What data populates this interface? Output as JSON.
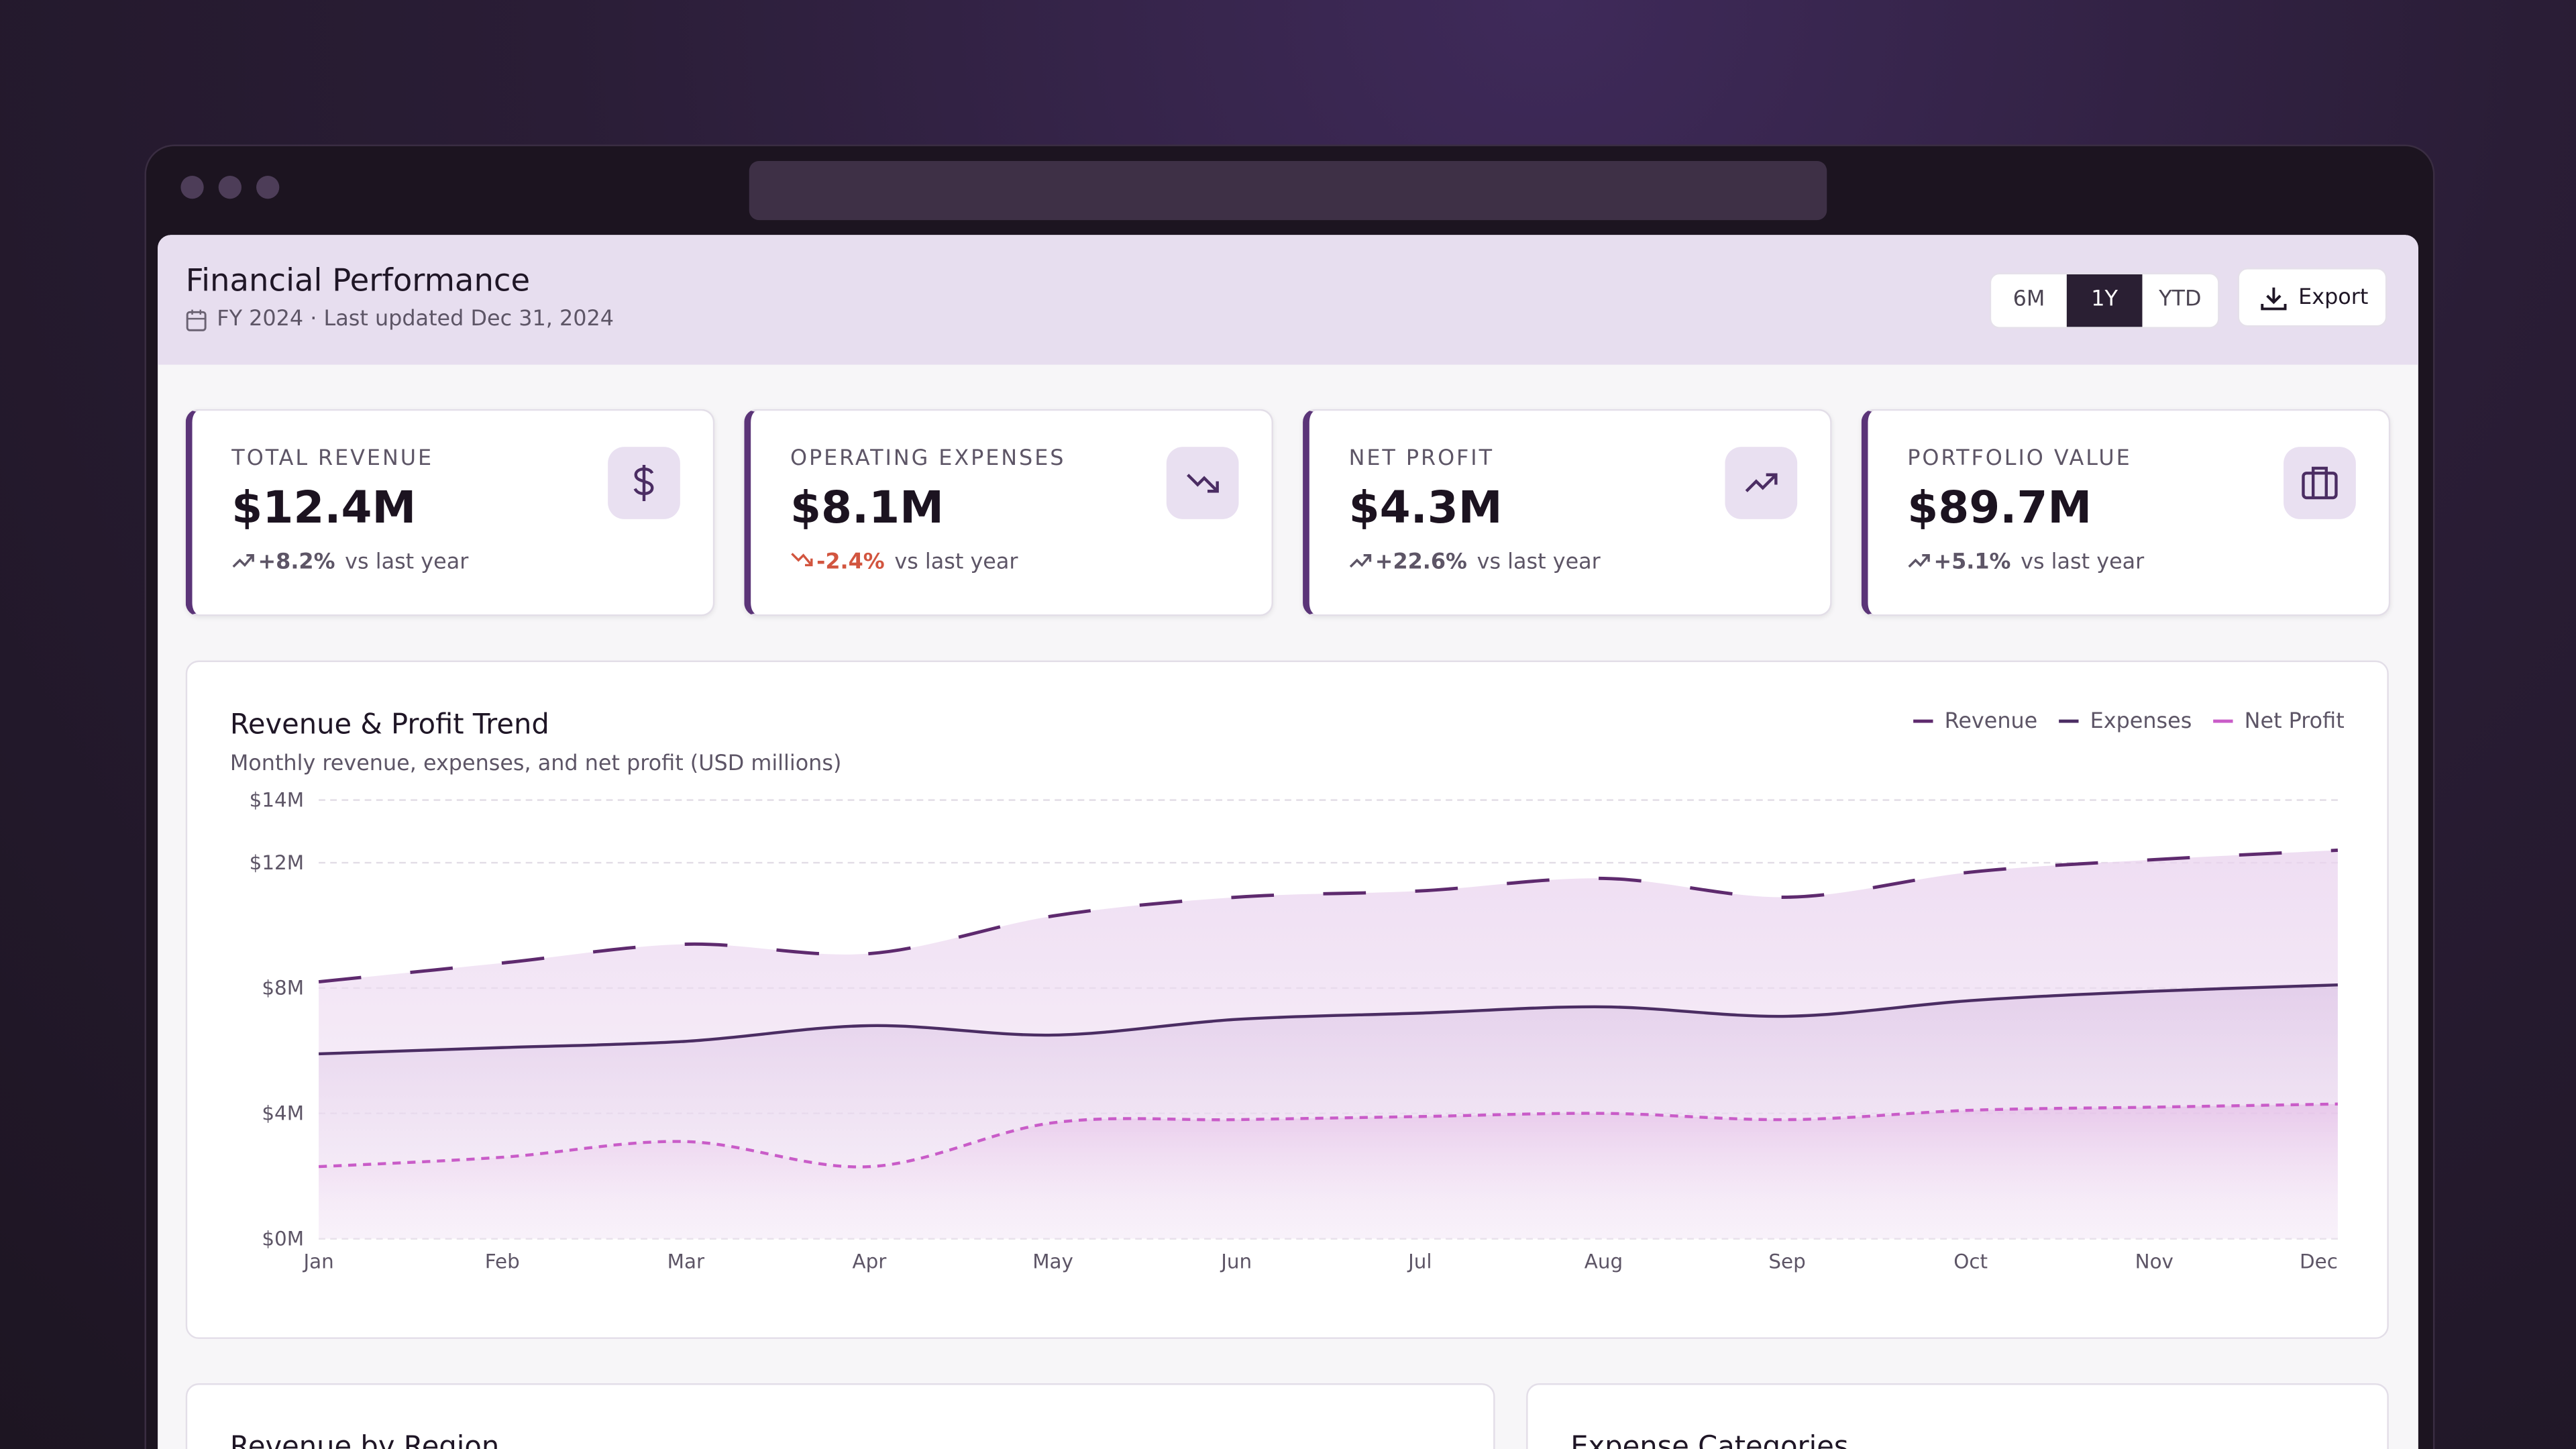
{
  "header": {
    "title": "Financial Performance",
    "subtitle": "FY 2024 · Last updated Dec 31, 2024",
    "ranges": [
      "6M",
      "1Y",
      "YTD"
    ],
    "active_range": "1Y",
    "export": "Export"
  },
  "kpis": [
    {
      "label": "TOTAL REVENUE",
      "value": "$12.4M",
      "change": "+8.2%",
      "note": "vs last year"
    },
    {
      "label": "OPERATING EXPENSES",
      "value": "$8.1M",
      "change": "-2.4%",
      "note": "vs last year"
    },
    {
      "label": "NET PROFIT",
      "value": "$4.3M",
      "change": "+22.6%",
      "note": "vs last year"
    },
    {
      "label": "PORTFOLIO VALUE",
      "value": "$89.7M",
      "change": "+5.1%",
      "note": "vs last year"
    }
  ],
  "chart_data": {
    "type": "line",
    "title": "Revenue & Profit Trend",
    "subtitle": "Monthly revenue, expenses, and net profit (USD millions)",
    "categories": [
      "Jan",
      "Feb",
      "Mar",
      "Apr",
      "May",
      "Jun",
      "Jul",
      "Aug",
      "Sep",
      "Oct",
      "Nov",
      "Dec"
    ],
    "series": [
      {
        "name": "Revenue",
        "color": "#5e2a6e",
        "values": [
          8.2,
          8.8,
          9.4,
          9.1,
          10.3,
          10.9,
          11.1,
          11.5,
          10.9,
          11.7,
          12.1,
          12.4
        ]
      },
      {
        "name": "Expenses",
        "color": "#4b2d63",
        "values": [
          5.9,
          6.1,
          6.3,
          6.8,
          6.5,
          7.0,
          7.2,
          7.4,
          7.1,
          7.6,
          7.9,
          8.1
        ]
      },
      {
        "name": "Net Profit",
        "color": "#c95cc8",
        "values": [
          2.3,
          2.6,
          3.1,
          2.3,
          3.7,
          3.8,
          3.9,
          4.0,
          3.8,
          4.1,
          4.2,
          4.3
        ]
      }
    ],
    "ylim": [
      0,
      14
    ],
    "yticks": [
      {
        "value": 0,
        "label": "$0M"
      },
      {
        "value": 4,
        "label": "$4M"
      },
      {
        "value": 8,
        "label": "$8M"
      },
      {
        "value": 12,
        "label": "$12M"
      },
      {
        "value": 14,
        "label": "$14M"
      }
    ],
    "grid": true,
    "legend": "top-right"
  },
  "panels": [
    "Revenue by Region",
    "Expense Categories"
  ]
}
